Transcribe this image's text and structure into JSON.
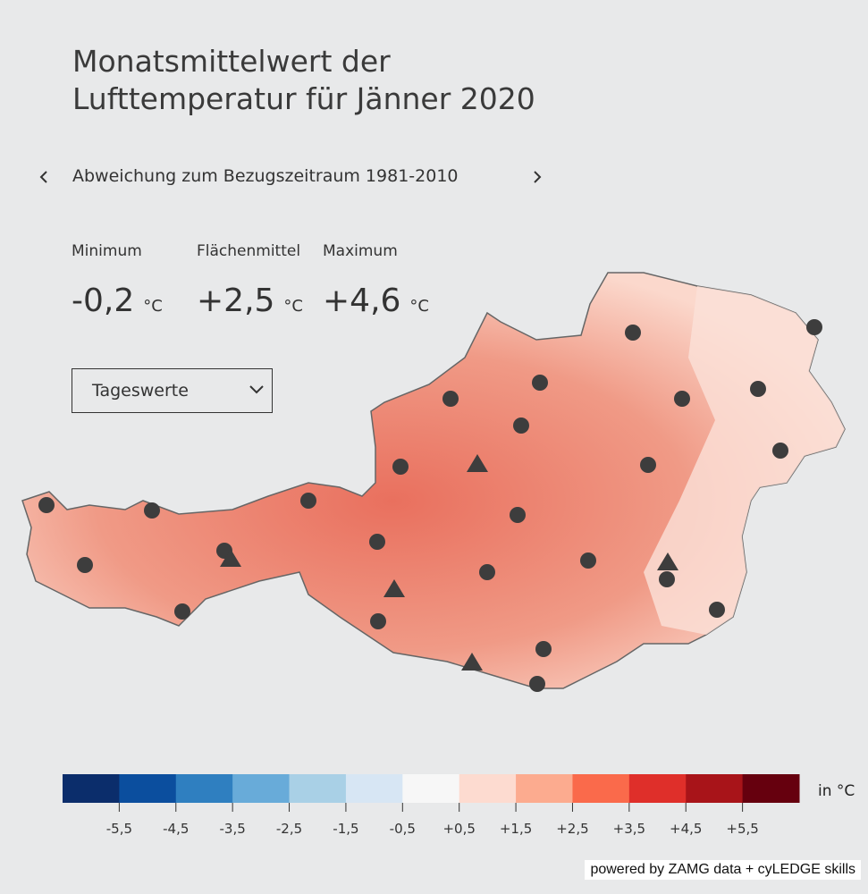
{
  "header": {
    "title_lines": [
      "Monatsmittelwert der",
      "Lufttemperatur für Jänner 2020"
    ],
    "subtitle": "Abweichung zum Bezugszeitraum 1981-2010"
  },
  "stats": [
    {
      "label": "Minimum",
      "value": "-0,2",
      "unit": "°C"
    },
    {
      "label": "Flächenmittel",
      "value": "+2,5",
      "unit": "°C"
    },
    {
      "label": "Maximum",
      "value": "+4,6",
      "unit": "°C"
    }
  ],
  "dropdown": {
    "selected": "Tageswerte"
  },
  "legend": {
    "unit": "in °C",
    "colors": [
      "#0b2d6b",
      "#0b4e9e",
      "#2f7fc0",
      "#68abd9",
      "#a9d0e6",
      "#d7e6f4",
      "#f7f7f7",
      "#fddbd0",
      "#fcab8f",
      "#fa6a4b",
      "#df2f2a",
      "#a81419",
      "#66000e"
    ],
    "ticks": [
      "-5,5",
      "-4,5",
      "-3,5",
      "-2,5",
      "-1,5",
      "-0,5",
      "+0,5",
      "+1,5",
      "+2,5",
      "+3,5",
      "+4,5",
      "+5,5"
    ]
  },
  "footer": {
    "credit": "powered by ZAMG data + cyLEDGE skills"
  }
}
